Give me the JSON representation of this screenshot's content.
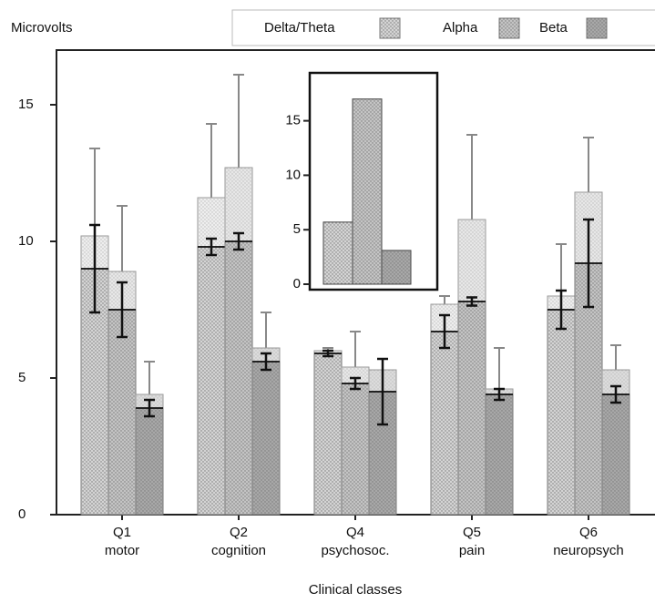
{
  "chart_data": [
    {
      "type": "bar",
      "y_label": "Microvolts",
      "x_label": "Clinical classes",
      "categories": [
        [
          "Q1",
          "motor"
        ],
        [
          "Q2",
          "cognition"
        ],
        [
          "Q4",
          "psychosoc."
        ],
        [
          "Q5",
          "pain"
        ],
        [
          "Q6",
          "neuropsych"
        ]
      ],
      "series": [
        {
          "name": "Delta/Theta",
          "color": "#d4d4d4",
          "values": [
            10.2,
            11.6,
            6.0,
            7.7,
            8.0
          ],
          "errors": [
            3.2,
            2.7,
            0.1,
            0.3,
            1.9
          ],
          "inner_values": [
            9.0,
            9.8,
            5.9,
            6.7,
            7.5
          ],
          "inner_errors": [
            1.6,
            0.3,
            0.1,
            0.6,
            0.7
          ]
        },
        {
          "name": "Alpha",
          "color": "#c4c4c4",
          "values": [
            8.9,
            12.7,
            5.4,
            10.8,
            11.8
          ],
          "errors": [
            2.4,
            3.4,
            1.3,
            3.1,
            2.0
          ],
          "inner_values": [
            7.5,
            10.0,
            4.8,
            7.8,
            9.2
          ],
          "inner_errors": [
            1.0,
            0.3,
            0.2,
            0.15,
            1.6
          ]
        },
        {
          "name": "Beta",
          "color": "#a8a8a8",
          "values": [
            4.4,
            6.1,
            5.3,
            4.6,
            5.3
          ],
          "errors": [
            1.2,
            1.3,
            0.4,
            1.5,
            0.9
          ],
          "inner_values": [
            3.9,
            5.6,
            4.5,
            4.4,
            4.4
          ],
          "inner_errors": [
            0.3,
            0.3,
            1.2,
            0.2,
            0.3
          ]
        }
      ],
      "ylim": [
        0,
        17
      ],
      "yticks": [
        0,
        5,
        10,
        15
      ],
      "legend": "top-right"
    },
    {
      "type": "inset-bar",
      "values": [
        5.7,
        17,
        3.1
      ],
      "colors": [
        "#d4d4d4",
        "#c4c4c4",
        "#a8a8a8"
      ],
      "ylim": [
        0,
        19.4
      ],
      "yticks": [
        0,
        5,
        10,
        15
      ]
    }
  ]
}
